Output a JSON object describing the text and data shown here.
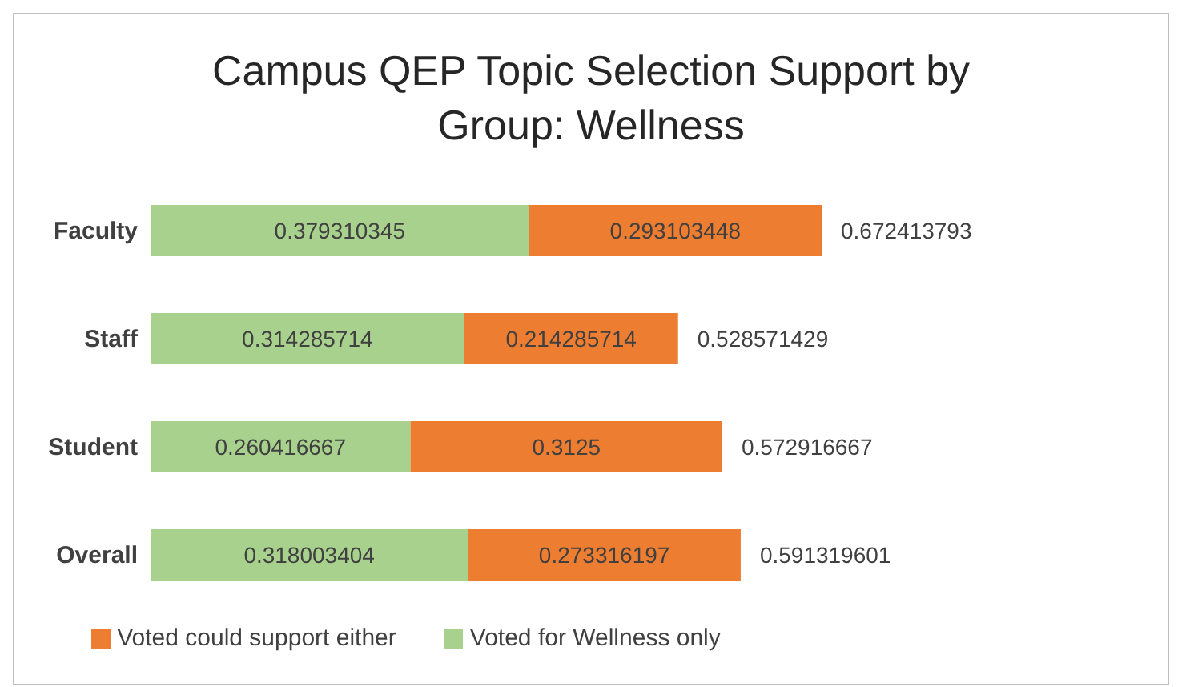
{
  "chart_data": {
    "type": "bar",
    "orientation": "horizontal",
    "stacked": true,
    "title": "Campus QEP Topic Selection Support by Group: Wellness",
    "categories": [
      "Faculty",
      "Staff",
      "Student",
      "Overall"
    ],
    "series": [
      {
        "name": "Voted for Wellness only",
        "color": "#a9d18e",
        "values": [
          0.379310345,
          0.314285714,
          0.260416667,
          0.318003404
        ]
      },
      {
        "name": "Voted could support either",
        "color": "#ed7d31",
        "values": [
          0.293103448,
          0.214285714,
          0.3125,
          0.273316197
        ]
      }
    ],
    "totals": [
      "0.672413793",
      "0.528571429",
      "0.572916667",
      "0.591319601"
    ],
    "data_labels": true,
    "legend": "bottom",
    "grid": false
  }
}
